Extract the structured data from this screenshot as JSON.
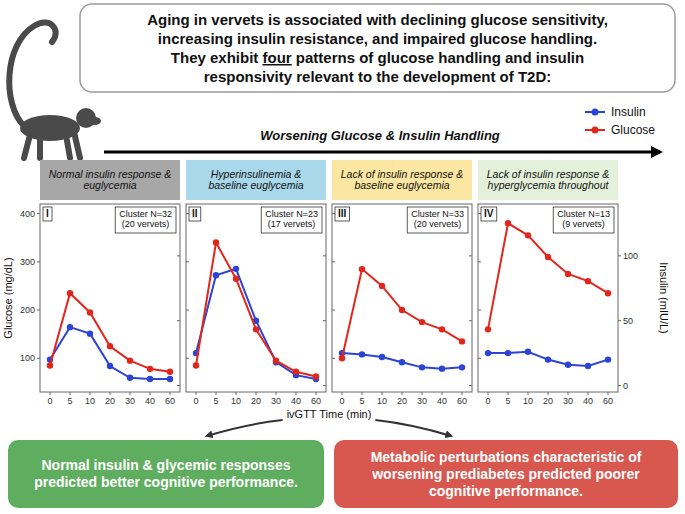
{
  "header": {
    "lines": [
      {
        "text": "Aging in vervets is associated with declining glucose sensitivity,"
      },
      {
        "text": "increasing insulin resistance, and impaired glucose handling."
      },
      {
        "text": "They exhibit ",
        "underlined": "four",
        "after": " patterns of glucose handling and insulin"
      },
      {
        "text": "responsivity relevant to the development of T2D:"
      }
    ]
  },
  "trend_label": "Worsening Glucose & Insulin Handling",
  "axis_titles": {
    "x": "ivGTT Time (min)",
    "y": "Glucose (mg/dL)",
    "y2": "Insulin (mIU/L)"
  },
  "chart_data": [
    {
      "type": "line",
      "title": "Normal insulin response & euglycemia",
      "panel": "I",
      "annotations": [
        "Cluster N=32",
        "(20 vervets)"
      ],
      "categories": [
        "0",
        "5",
        "10",
        "20",
        "30",
        "40",
        "60"
      ],
      "series": [
        {
          "name": "Insulin",
          "color": "#2b44d6",
          "marker": "circle",
          "axis": "y2",
          "values": [
            20,
            45,
            40,
            15,
            6,
            5,
            5
          ]
        },
        {
          "name": "Glucose",
          "color": "#e3261c",
          "marker": "circle",
          "values": [
            85,
            235,
            195,
            125,
            95,
            78,
            72
          ]
        }
      ],
      "ylim": [
        30,
        420
      ],
      "yticks": [
        100,
        200,
        300,
        400
      ],
      "y2lim": [
        -5,
        140
      ],
      "y2ticks": [
        0,
        50,
        100
      ],
      "grid": false,
      "legend": "top-right"
    },
    {
      "type": "line",
      "title": "Hyperinsulinemia & baseline euglycemia",
      "panel": "II",
      "annotations": [
        "Cluster N=23",
        "(17 vervets)"
      ],
      "categories": [
        "0",
        "5",
        "10",
        "20",
        "30",
        "40",
        "60"
      ],
      "series": [
        {
          "name": "Insulin",
          "color": "#2b44d6",
          "marker": "circle",
          "axis": "y2",
          "values": [
            25,
            85,
            90,
            50,
            18,
            8,
            5
          ]
        },
        {
          "name": "Glucose",
          "color": "#e3261c",
          "marker": "circle",
          "values": [
            85,
            340,
            265,
            160,
            95,
            72,
            62
          ]
        }
      ],
      "ylim": [
        30,
        420
      ],
      "yticks": [
        100,
        200,
        300,
        400
      ],
      "y2lim": [
        -5,
        140
      ],
      "y2ticks": [
        0,
        50,
        100
      ],
      "grid": false,
      "tick_labels": "x"
    },
    {
      "type": "line",
      "title": "Lack of insulin response & baseline euglycemia",
      "panel": "III",
      "annotations": [
        "Cluster N=33",
        "(20 vervets)"
      ],
      "categories": [
        "0",
        "5",
        "10",
        "20",
        "30",
        "40",
        "60"
      ],
      "series": [
        {
          "name": "Insulin",
          "color": "#2b44d6",
          "marker": "circle",
          "axis": "y2",
          "values": [
            25,
            24,
            22,
            18,
            14,
            13,
            14
          ]
        },
        {
          "name": "Glucose",
          "color": "#e3261c",
          "marker": "circle",
          "values": [
            100,
            285,
            250,
            200,
            175,
            160,
            135
          ]
        }
      ],
      "ylim": [
        30,
        420
      ],
      "yticks": [
        100,
        200,
        300,
        400
      ],
      "y2lim": [
        -5,
        140
      ],
      "y2ticks": [
        0,
        50,
        100
      ],
      "grid": false,
      "tick_labels": "x"
    },
    {
      "type": "line",
      "title": "Lack of insulin response & hyperglycemia throughout",
      "panel": "IV",
      "annotations": [
        "Cluster N=13",
        "(9 vervets)"
      ],
      "categories": [
        "0",
        "5",
        "10",
        "20",
        "30",
        "40",
        "60"
      ],
      "series": [
        {
          "name": "Insulin",
          "color": "#2b44d6",
          "marker": "circle",
          "axis": "y2",
          "values": [
            25,
            25,
            26,
            20,
            16,
            15,
            20
          ]
        },
        {
          "name": "Glucose",
          "color": "#e3261c",
          "marker": "circle",
          "values": [
            160,
            380,
            355,
            310,
            275,
            260,
            235
          ]
        }
      ],
      "ylim": [
        30,
        420
      ],
      "yticks": [
        100,
        200,
        300,
        400
      ],
      "y2lim": [
        -5,
        140
      ],
      "y2ticks": [
        0,
        50,
        100
      ],
      "grid": false
    }
  ],
  "conclusions": [
    "Normal insulin & glycemic responses predicted better cognitive performance.",
    "Metabolic perturbations characteristic of worsening prediabetes predicted poorer cognitive performance."
  ]
}
